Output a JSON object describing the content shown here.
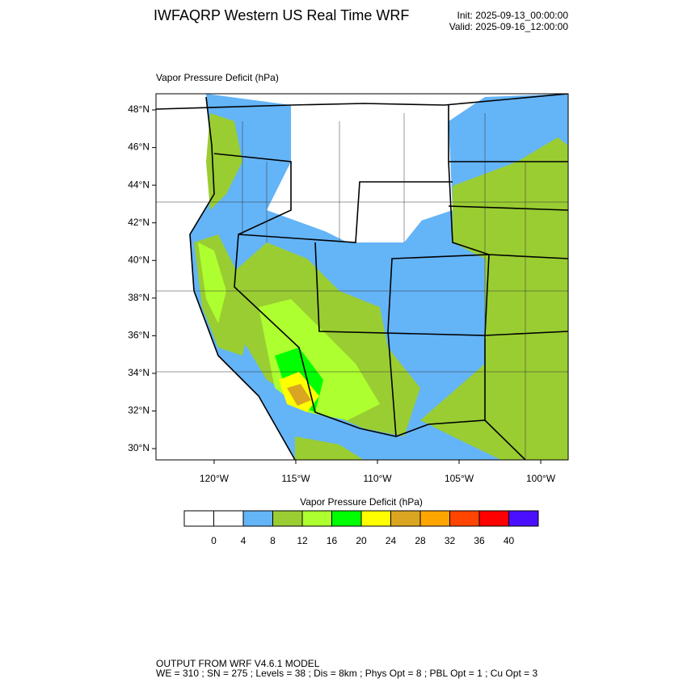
{
  "header": {
    "title": "IWFAQRP Western US Real Time WRF",
    "init": "Init: 2025-09-13_00:00:00",
    "valid": "Valid: 2025-09-16_12:00:00"
  },
  "map": {
    "subtitle": "Vapor Pressure Deficit   (hPa)",
    "xlim": [
      -123.56,
      -98.32
    ],
    "ylim": [
      29.4,
      48.86
    ],
    "xticks": [
      {
        "value": -120,
        "label": "120°W"
      },
      {
        "value": -115,
        "label": "115°W"
      },
      {
        "value": -110,
        "label": "110°W"
      },
      {
        "value": -105,
        "label": "105°W"
      },
      {
        "value": -100,
        "label": "100°W"
      }
    ],
    "yticks": [
      {
        "value": 30,
        "label": "30°N"
      },
      {
        "value": 32,
        "label": "32°N"
      },
      {
        "value": 34,
        "label": "34°N"
      },
      {
        "value": 36,
        "label": "36°N"
      },
      {
        "value": 38,
        "label": "38°N"
      },
      {
        "value": 40,
        "label": "40°N"
      },
      {
        "value": 42,
        "label": "42°N"
      },
      {
        "value": 44,
        "label": "44°N"
      },
      {
        "value": 46,
        "label": "46°N"
      },
      {
        "value": 48,
        "label": "48°N"
      }
    ]
  },
  "colorbar": {
    "title": "Vapor Pressure Deficit  (hPa)",
    "colors": [
      "#ffffff",
      "#ffffff",
      "#64b4f8",
      "#9acd32",
      "#adff2f",
      "#00ff00",
      "#ffff00",
      "#daa520",
      "#ffa500",
      "#ff4500",
      "#ff0000",
      "#4b0fff"
    ],
    "ticks": [
      0,
      4,
      8,
      12,
      16,
      20,
      24,
      28,
      32,
      36,
      40
    ]
  },
  "footer": {
    "line1": "OUTPUT FROM WRF V4.6.1 MODEL",
    "line2": "WE = 310 ; SN = 275 ; Levels = 38 ; Dis = 8km ; Phys Opt = 8 ; PBL Opt = 1 ; Cu Opt = 3"
  }
}
